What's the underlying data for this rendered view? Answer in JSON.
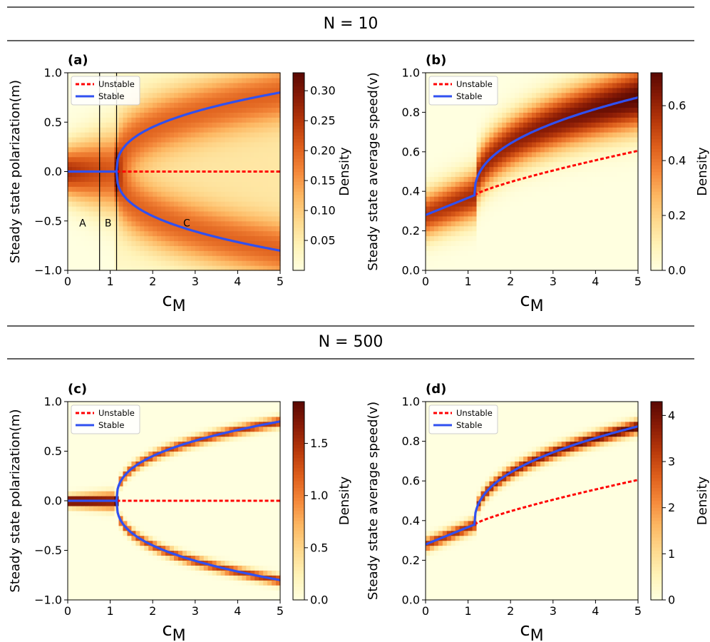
{
  "sections": [
    {
      "label": "N = 10"
    },
    {
      "label": "N = 500"
    }
  ],
  "colormap": [
    "#ffffe0",
    "#fff3b8",
    "#fed98e",
    "#fdb863",
    "#f4883a",
    "#de5f1c",
    "#b8390b",
    "#8a1c06",
    "#5a0903"
  ],
  "colors": {
    "unstable": "#ff0000",
    "stable": "#3050f0",
    "divider": "#000000"
  },
  "chart_data": [
    {
      "panel_label": "(a)",
      "type": "heatmap",
      "variant": "polarization",
      "system_size": 10,
      "xlabel": "c",
      "xlabel_sub": "M",
      "ylabel": "Steady state polarization(m)",
      "xlim": [
        0,
        5
      ],
      "ylim": [
        -1,
        1
      ],
      "xticks": [
        "0",
        "1",
        "2",
        "3",
        "4",
        "5"
      ],
      "yticks": [
        "-1.0",
        "-0.5",
        "0.0",
        "0.5",
        "1.0"
      ],
      "colorbar": {
        "label": "Density",
        "range": [
          0.0,
          0.33
        ],
        "ticks": [
          "0.05",
          "0.10",
          "0.15",
          "0.20",
          "0.25",
          "0.30"
        ],
        "tick_values": [
          0.05,
          0.1,
          0.15,
          0.2,
          0.25,
          0.3
        ]
      },
      "legend": {
        "position": "top-left",
        "entries": [
          "Unstable",
          "Stable"
        ]
      },
      "regions": {
        "boundaries": [
          0.75,
          1.15
        ],
        "labels": [
          {
            "text": "A",
            "x": 0.35,
            "y": -0.52
          },
          {
            "text": "B",
            "x": 0.95,
            "y": -0.52
          },
          {
            "text": "C",
            "x": 2.8,
            "y": -0.52
          }
        ]
      },
      "stable_curve": {
        "critical_c": 1.15,
        "max_m": 0.8
      },
      "unstable_curve": {
        "from": 1.15,
        "to": 5,
        "m": 0.0
      },
      "heatmap_params": {
        "grid": [
          50,
          40
        ],
        "sigma": 0.17,
        "spread_rate": 0.12,
        "peak": 0.32
      }
    },
    {
      "panel_label": "(b)",
      "type": "heatmap",
      "variant": "speed",
      "system_size": 10,
      "xlabel": "c",
      "xlabel_sub": "M",
      "ylabel": "Steady state average speed(v)",
      "xlim": [
        0,
        5
      ],
      "ylim": [
        0,
        1
      ],
      "xticks": [
        "0",
        "1",
        "2",
        "3",
        "4",
        "5"
      ],
      "yticks": [
        "0.0",
        "0.2",
        "0.4",
        "0.6",
        "0.8",
        "1.0"
      ],
      "colorbar": {
        "label": "Density",
        "range": [
          0.0,
          0.72
        ],
        "ticks": [
          "0.0",
          "0.2",
          "0.4",
          "0.6"
        ],
        "tick_values": [
          0.0,
          0.2,
          0.4,
          0.6
        ]
      },
      "legend": {
        "position": "top-left",
        "entries": [
          "Unstable",
          "Stable"
        ]
      },
      "stable_curve": {
        "v0": 0.28,
        "vc": 0.38,
        "critical_c": 1.15,
        "v_end": 0.875
      },
      "unstable_curve": {
        "v_start": 0.38,
        "v_end": 0.605
      },
      "heatmap_params": {
        "grid": [
          50,
          40
        ],
        "sigma": 0.075,
        "peak": 0.72
      }
    },
    {
      "panel_label": "(c)",
      "type": "heatmap",
      "variant": "polarization",
      "system_size": 500,
      "xlabel": "c",
      "xlabel_sub": "M",
      "ylabel": "Steady state polarization(m)",
      "xlim": [
        0,
        5
      ],
      "ylim": [
        -1,
        1
      ],
      "xticks": [
        "0",
        "1",
        "2",
        "3",
        "4",
        "5"
      ],
      "yticks": [
        "-1.0",
        "-0.5",
        "0.0",
        "0.5",
        "1.0"
      ],
      "colorbar": {
        "label": "Density",
        "range": [
          0.0,
          1.9
        ],
        "ticks": [
          "0.0",
          "0.5",
          "1.0",
          "1.5"
        ],
        "tick_values": [
          0.0,
          0.5,
          1.0,
          1.5
        ]
      },
      "legend": {
        "position": "top-left",
        "entries": [
          "Unstable",
          "Stable"
        ]
      },
      "stable_curve": {
        "critical_c": 1.15,
        "max_m": 0.8
      },
      "unstable_curve": {
        "from": 1.15,
        "to": 5,
        "m": 0.0
      },
      "heatmap_params": {
        "grid": [
          50,
          40
        ],
        "sigma": 0.035,
        "spread_rate": 0.0,
        "peak": 1.85
      }
    },
    {
      "panel_label": "(d)",
      "type": "heatmap",
      "variant": "speed",
      "system_size": 500,
      "xlabel": "c",
      "xlabel_sub": "M",
      "ylabel": "Steady state average speed(v)",
      "xlim": [
        0,
        5
      ],
      "ylim": [
        0,
        1
      ],
      "xticks": [
        "0",
        "1",
        "2",
        "3",
        "4",
        "5"
      ],
      "yticks": [
        "0.0",
        "0.2",
        "0.4",
        "0.6",
        "0.8",
        "1.0"
      ],
      "colorbar": {
        "label": "Density",
        "range": [
          0,
          4.3
        ],
        "ticks": [
          "0",
          "1",
          "2",
          "3",
          "4"
        ],
        "tick_values": [
          0,
          1,
          2,
          3,
          4
        ]
      },
      "legend": {
        "position": "top-left",
        "entries": [
          "Unstable",
          "Stable"
        ]
      },
      "stable_curve": {
        "v0": 0.28,
        "vc": 0.38,
        "critical_c": 1.15,
        "v_end": 0.875
      },
      "unstable_curve": {
        "v_start": 0.38,
        "v_end": 0.605
      },
      "heatmap_params": {
        "grid": [
          50,
          40
        ],
        "sigma": 0.022,
        "peak": 4.2
      }
    }
  ]
}
